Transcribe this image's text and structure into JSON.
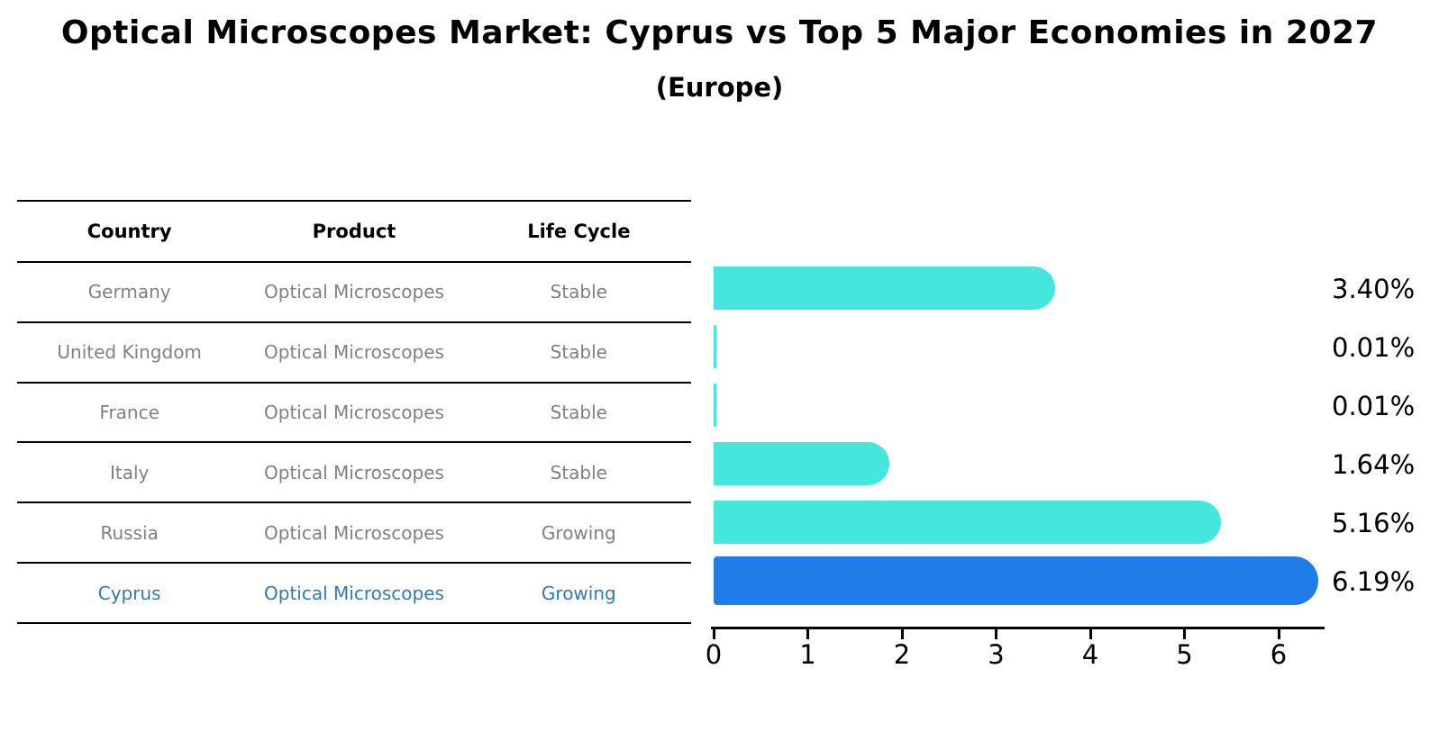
{
  "title": "Optical Microscopes Market: Cyprus vs Top 5 Major Economies in 2027",
  "subtitle": "(Europe)",
  "table": {
    "headers": [
      "Country",
      "Product",
      "Life Cycle"
    ],
    "rows": [
      {
        "country": "Germany",
        "product": "Optical Microscopes",
        "life_cycle": "Stable",
        "highlight": false
      },
      {
        "country": "United Kingdom",
        "product": "Optical Microscopes",
        "life_cycle": "Stable",
        "highlight": false
      },
      {
        "country": "France",
        "product": "Optical Microscopes",
        "life_cycle": "Stable",
        "highlight": false
      },
      {
        "country": "Italy",
        "product": "Optical Microscopes",
        "life_cycle": "Stable",
        "highlight": false
      },
      {
        "country": "Russia",
        "product": "Optical Microscopes",
        "life_cycle": "Growing",
        "highlight": false
      },
      {
        "country": "Cyprus",
        "product": "Optical Microscopes",
        "life_cycle": "Growing",
        "highlight": true
      }
    ]
  },
  "chart_data": {
    "type": "bar",
    "orientation": "horizontal",
    "title": "Optical Microscopes Market: Cyprus vs Top 5 Major Economies in 2027 (Europe)",
    "categories": [
      "Germany",
      "United Kingdom",
      "France",
      "Italy",
      "Russia",
      "Cyprus"
    ],
    "values": [
      3.4,
      0.01,
      0.01,
      1.64,
      5.16,
      6.19
    ],
    "value_labels": [
      "3.40%",
      "0.01%",
      "0.01%",
      "1.64%",
      "5.16%",
      "6.19%"
    ],
    "x_ticks": [
      0,
      1,
      2,
      3,
      4,
      5,
      6
    ],
    "xlim": [
      0,
      6.6
    ],
    "grid": false,
    "legend": false,
    "bar_color": "#45E6DC",
    "highlight_color": "#1F7CE8",
    "highlight_index": 5
  },
  "colors": {
    "bar": "#45E6DC",
    "highlight_bar": "#1F7CE8",
    "row_text": "#808080",
    "highlight_text": "#2E7AB8",
    "header_text": "#000000",
    "axis": "#000000",
    "value_label": "#000000",
    "title_text": "#000000"
  }
}
